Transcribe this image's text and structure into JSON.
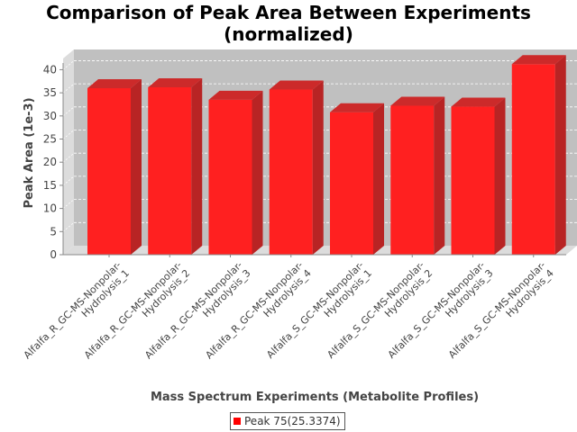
{
  "chart_data": {
    "type": "bar",
    "title": "Comparison of Peak Area Between Experiments (normalized)",
    "title_lines": [
      "Comparison of Peak Area Between Experiments",
      "(normalized)"
    ],
    "xlabel": "Mass Spectrum Experiments (Metabolite Profiles)",
    "ylabel": "Peak Area (1e-3)",
    "ylim": [
      0,
      43
    ],
    "yticks": [
      0,
      5,
      10,
      15,
      20,
      25,
      30,
      35,
      40
    ],
    "categories": [
      [
        "Alfalfa_R_GC-MS-Nonpolar-",
        "Hydrolysis_1"
      ],
      [
        "Alfalfa_R_GC-MS-Nonpolar-",
        "Hydrolysis_2"
      ],
      [
        "Alfalfa_R_GC-MS-Nonpolar-",
        "Hydrolysis_3"
      ],
      [
        "Alfalfa_R_GC-MS-Nonpolar-",
        "Hydrolysis_4"
      ],
      [
        "Alfalfa_S_GC-MS-Nonpolar-",
        "Hydrolysis_1"
      ],
      [
        "Alfalfa_S_GC-MS-Nonpolar-",
        "Hydrolysis_2"
      ],
      [
        "Alfalfa_S_GC-MS-Nonpolar-",
        "Hydrolysis_3"
      ],
      [
        "Alfalfa_S_GC-MS-Nonpolar-",
        "Hydrolysis_4"
      ]
    ],
    "series": [
      {
        "name": "Peak 75(25.3374)",
        "values": [
          36.0,
          36.2,
          33.5,
          35.7,
          30.8,
          32.2,
          32.0,
          41.2
        ]
      }
    ],
    "grid": true,
    "legend": "bottom-center",
    "colors": {
      "bar": "#ff2020",
      "bar_side": "#b82424",
      "bar_top": "#cc2a2a",
      "plot_bg": "#c0c0c0",
      "wall": "#dcdcdc"
    }
  }
}
